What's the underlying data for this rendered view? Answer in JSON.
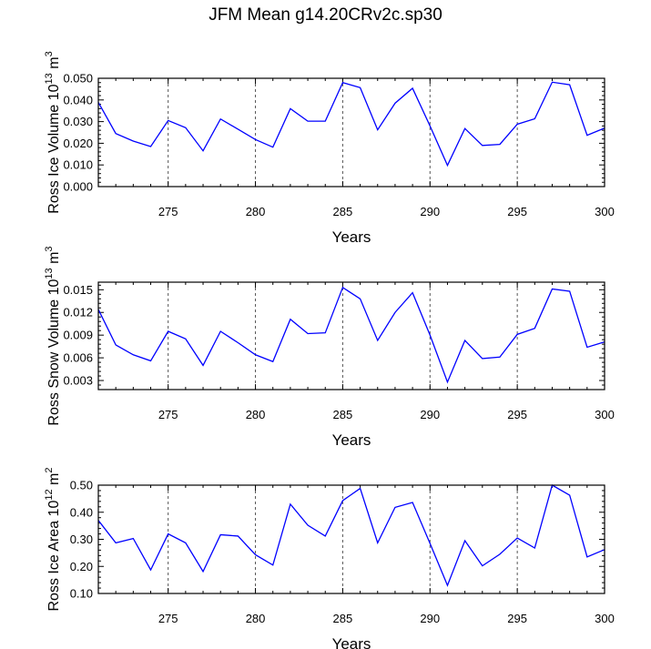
{
  "title": "JFM Mean g14.20CRv2c.sp30",
  "series_color": "#0000ff",
  "chart_data": [
    {
      "type": "line",
      "title": "",
      "xlabel": "Years",
      "ylabel": {
        "main": "Ross Ice Volume 10",
        "exp": "13",
        "unit": " m",
        "unit_exp": "3"
      },
      "xlim": [
        271,
        300
      ],
      "ylim": [
        0,
        0.05
      ],
      "xticks": [
        275,
        280,
        285,
        290,
        295,
        300
      ],
      "yticks": [
        "0.000",
        "0.010",
        "0.020",
        "0.030",
        "0.040",
        "0.050"
      ],
      "ytick_values": [
        0,
        0.01,
        0.02,
        0.03,
        0.04,
        0.05
      ],
      "vlines": [
        275,
        280,
        285,
        290,
        295
      ],
      "grid": false,
      "x": [
        271,
        272,
        273,
        274,
        275,
        276,
        277,
        278,
        279,
        280,
        281,
        282,
        283,
        284,
        285,
        286,
        287,
        288,
        289,
        290,
        291,
        292,
        293,
        294,
        295,
        296,
        297,
        298,
        299,
        300
      ],
      "series": [
        {
          "values": [
            0.0389,
            0.0245,
            0.021,
            0.0185,
            0.0305,
            0.0272,
            0.0165,
            0.0312,
            0.0265,
            0.0217,
            0.0182,
            0.036,
            0.0302,
            0.0302,
            0.048,
            0.0457,
            0.0262,
            0.0385,
            0.0454,
            0.028,
            0.0098,
            0.0268,
            0.019,
            0.0195,
            0.0288,
            0.0313,
            0.0482,
            0.047,
            0.0237,
            0.027
          ]
        }
      ]
    },
    {
      "type": "line",
      "title": "",
      "xlabel": "Years",
      "ylabel": {
        "main": "Ross Snow Volume 10",
        "exp": "13",
        "unit": " m",
        "unit_exp": "3"
      },
      "xlim": [
        271,
        300
      ],
      "ylim": [
        0.0018,
        0.016
      ],
      "xticks": [
        275,
        280,
        285,
        290,
        295,
        300
      ],
      "yticks": [
        "0.003",
        "0.006",
        "0.009",
        "0.012",
        "0.015"
      ],
      "ytick_values": [
        0.003,
        0.006,
        0.009,
        0.012,
        0.015
      ],
      "vlines": [
        275,
        280,
        285,
        290,
        295
      ],
      "grid": false,
      "x": [
        271,
        272,
        273,
        274,
        275,
        276,
        277,
        278,
        279,
        280,
        281,
        282,
        283,
        284,
        285,
        286,
        287,
        288,
        289,
        290,
        291,
        292,
        293,
        294,
        295,
        296,
        297,
        298,
        299,
        300
      ],
      "series": [
        {
          "values": [
            0.0124,
            0.0077,
            0.0064,
            0.0056,
            0.0095,
            0.0085,
            0.005,
            0.0095,
            0.008,
            0.0064,
            0.0055,
            0.0111,
            0.0092,
            0.0093,
            0.0153,
            0.0138,
            0.0083,
            0.012,
            0.0146,
            0.009,
            0.0028,
            0.0083,
            0.0059,
            0.0061,
            0.0091,
            0.0099,
            0.0151,
            0.0148,
            0.0074,
            0.0081
          ]
        }
      ]
    },
    {
      "type": "line",
      "title": "",
      "xlabel": "Years",
      "ylabel": {
        "main": "Ross Ice Area 10",
        "exp": "12",
        "unit": " m",
        "unit_exp": "2"
      },
      "xlim": [
        271,
        300
      ],
      "ylim": [
        0.1,
        0.5
      ],
      "xticks": [
        275,
        280,
        285,
        290,
        295,
        300
      ],
      "yticks": [
        "0.10",
        "0.20",
        "0.30",
        "0.40",
        "0.50"
      ],
      "ytick_values": [
        0.1,
        0.2,
        0.3,
        0.4,
        0.5
      ],
      "vlines": [
        275,
        280,
        285,
        290,
        295
      ],
      "grid": false,
      "x": [
        271,
        272,
        273,
        274,
        275,
        276,
        277,
        278,
        279,
        280,
        281,
        282,
        283,
        284,
        285,
        286,
        287,
        288,
        289,
        290,
        291,
        292,
        293,
        294,
        295,
        296,
        297,
        298,
        299,
        300
      ],
      "series": [
        {
          "values": [
            0.37,
            0.287,
            0.303,
            0.187,
            0.32,
            0.287,
            0.181,
            0.317,
            0.312,
            0.243,
            0.205,
            0.43,
            0.352,
            0.312,
            0.443,
            0.488,
            0.287,
            0.418,
            0.436,
            0.285,
            0.13,
            0.295,
            0.202,
            0.245,
            0.305,
            0.268,
            0.5,
            0.463,
            0.235,
            0.262
          ]
        }
      ]
    }
  ]
}
